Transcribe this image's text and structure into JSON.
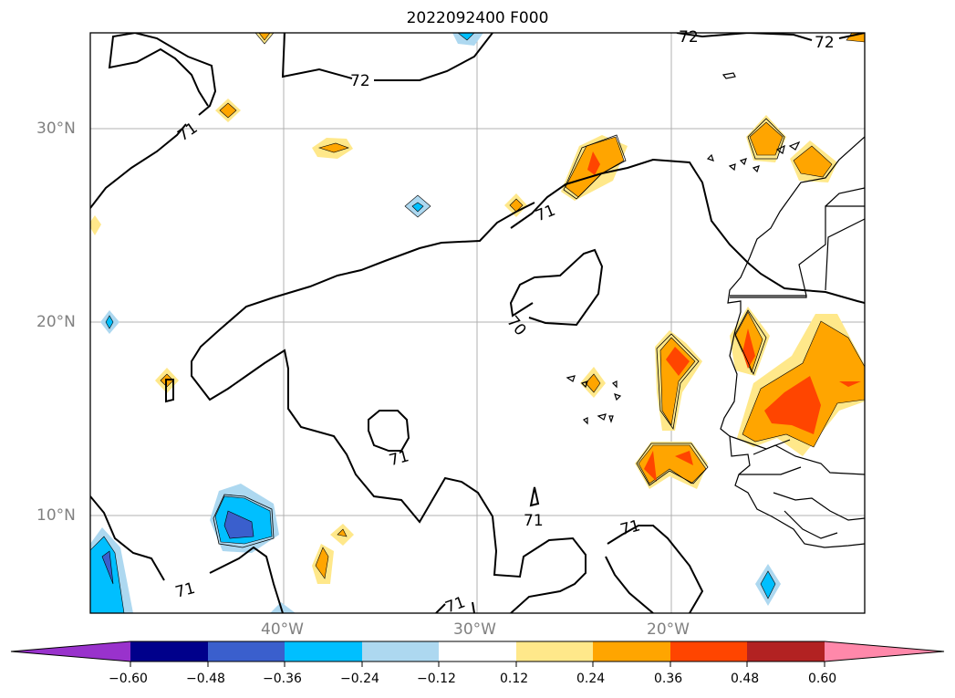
{
  "title": "2022092400 F000",
  "lat_labels": [
    "30°N",
    "20°N",
    "10°N"
  ],
  "lon_labels": [
    "40°W",
    "30°W",
    "20°W"
  ],
  "contour_labels": [
    "72",
    "72",
    "72",
    "71",
    "71",
    "71",
    "71",
    "71",
    "71",
    "71",
    "70"
  ],
  "colorbar": {
    "ticks": [
      "−0.60",
      "−0.48",
      "−0.36",
      "−0.24",
      "−0.12",
      "0.12",
      "0.24",
      "0.36",
      "0.48",
      "0.60"
    ],
    "colors": [
      "#9932cc",
      "#00008b",
      "#3a5fcd",
      "#00bfff",
      "#add8f0",
      "#ffffff",
      "#ffe88a",
      "#ffa500",
      "#ff4500",
      "#b22222",
      "#ff88aa"
    ]
  }
}
